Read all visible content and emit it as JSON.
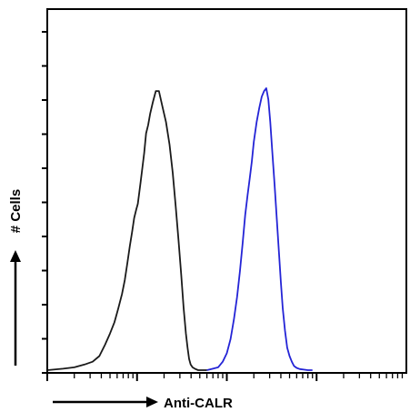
{
  "chart_data": {
    "type": "line",
    "subtype": "flow-cytometry-histogram",
    "title": "",
    "xlabel": "Anti-CALR",
    "ylabel": "# Cells",
    "x_scale": "log",
    "xlim": [
      1,
      10000
    ],
    "ylim": [
      0,
      100
    ],
    "grid": false,
    "legend": "none",
    "series": [
      {
        "color": "#1a1a1a",
        "x": [
          1.0,
          1.5,
          2.0,
          2.6,
          3.2,
          3.8,
          4.4,
          5.0,
          5.6,
          6.2,
          6.8,
          7.3,
          7.8,
          8.3,
          8.8,
          9.3,
          9.8,
          10.2,
          10.6,
          11.0,
          11.5,
          12.0,
          12.6,
          13.3,
          14.0,
          15.0,
          16.2,
          17.5,
          19.0,
          21.0,
          23.0,
          25.0,
          27.0,
          29.0,
          31.0,
          33.0,
          35.0,
          36.5,
          38.0,
          39.5,
          41.5,
          44.0,
          48.0,
          60.0
        ],
        "values": [
          0,
          0.5,
          1,
          2,
          3,
          5,
          9,
          13,
          17,
          22,
          27,
          32,
          38,
          44,
          49,
          54,
          57,
          59,
          63,
          67,
          72,
          77,
          84,
          87,
          91,
          95,
          99,
          99,
          94,
          88,
          80,
          70,
          58,
          46,
          34,
          22,
          13,
          8,
          4,
          2,
          1,
          0.5,
          0,
          0
        ]
      },
      {
        "color": "#2424d6",
        "x": [
          60.0,
          70.0,
          80.0,
          90.0,
          100.0,
          110.0,
          120.0,
          130.0,
          140.0,
          150.0,
          160.0,
          170.0,
          180.0,
          190.0,
          200.0,
          215.0,
          230.0,
          245.0,
          260.0,
          275.0,
          290.0,
          305.0,
          320.0,
          340.0,
          360.0,
          380.0,
          400.0,
          420.0,
          445.0,
          470.0,
          500.0,
          530.0,
          560.0,
          600.0,
          650.0,
          720.0,
          800.0,
          900.0
        ],
        "values": [
          0,
          0.5,
          1,
          3,
          6,
          11,
          18,
          26,
          35,
          45,
          55,
          62,
          68,
          74,
          81,
          88,
          93,
          97,
          99,
          100,
          96,
          88,
          78,
          66,
          54,
          42,
          31,
          22,
          14,
          8,
          5,
          3,
          1.5,
          0.8,
          0.4,
          0.2,
          0,
          0
        ]
      }
    ]
  }
}
